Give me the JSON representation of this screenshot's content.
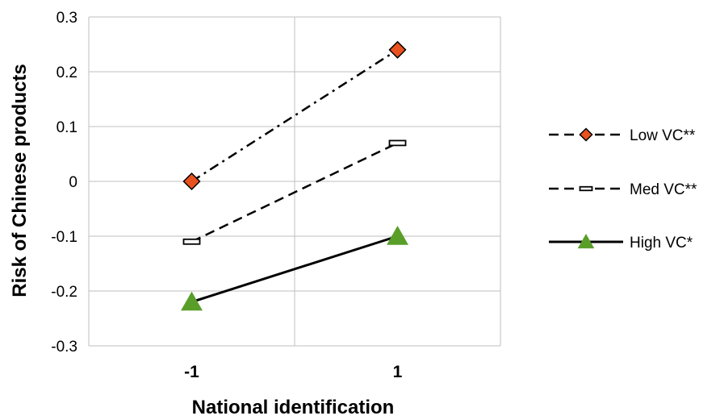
{
  "chart_data": {
    "type": "line",
    "title": "",
    "xlabel": "National identification",
    "ylabel": "Risk of Chinese products",
    "categories": [
      "-1",
      "1"
    ],
    "ylim": [
      -0.3,
      0.3
    ],
    "yticks": [
      0.3,
      0.2,
      0.1,
      0,
      -0.1,
      -0.2,
      -0.3
    ],
    "ytick_labels": [
      "0.3",
      "0.2",
      "0.1",
      "0",
      "-0.1",
      "-0.2",
      "-0.3"
    ],
    "grid": true,
    "legend_position": "right",
    "series": [
      {
        "name": "Low VC**",
        "values": [
          0.0,
          0.24
        ],
        "marker": "diamond",
        "marker_color": "#e8521e",
        "line_style": "dash-dot"
      },
      {
        "name": "Med VC**",
        "values": [
          -0.11,
          0.07
        ],
        "marker": "rectangle",
        "marker_color": "#ffffff",
        "line_style": "dashed"
      },
      {
        "name": "High VC*",
        "values": [
          -0.22,
          -0.1
        ],
        "marker": "triangle",
        "marker_color": "#5a9e2a",
        "line_style": "solid"
      }
    ]
  }
}
